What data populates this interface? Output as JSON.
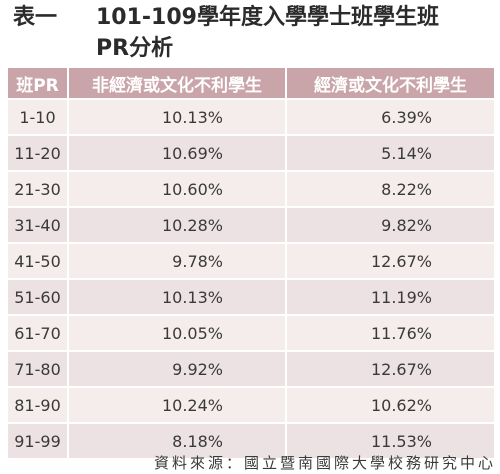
{
  "title": {
    "prefix": "表一",
    "line1": "101-109學年度入學學士班學生班",
    "line2": "PR分析"
  },
  "table": {
    "headers": [
      "班PR",
      "非經濟或文化不利學生",
      "經濟或文化不利學生"
    ],
    "rows": [
      {
        "range": "1-10",
        "non_disadvantaged": "10.13%",
        "disadvantaged": "6.39%"
      },
      {
        "range": "11-20",
        "non_disadvantaged": "10.69%",
        "disadvantaged": "5.14%"
      },
      {
        "range": "21-30",
        "non_disadvantaged": "10.60%",
        "disadvantaged": "8.22%"
      },
      {
        "range": "31-40",
        "non_disadvantaged": "10.28%",
        "disadvantaged": "9.82%"
      },
      {
        "range": "41-50",
        "non_disadvantaged": "9.78%",
        "disadvantaged": "12.67%"
      },
      {
        "range": "51-60",
        "non_disadvantaged": "10.13%",
        "disadvantaged": "11.19%"
      },
      {
        "range": "61-70",
        "non_disadvantaged": "10.05%",
        "disadvantaged": "11.76%"
      },
      {
        "range": "71-80",
        "non_disadvantaged": "9.92%",
        "disadvantaged": "12.67%"
      },
      {
        "range": "81-90",
        "non_disadvantaged": "10.24%",
        "disadvantaged": "10.62%"
      },
      {
        "range": "91-99",
        "non_disadvantaged": "8.18%",
        "disadvantaged": "11.53%"
      }
    ]
  },
  "source": "資料來源：國立暨南國際大學校務研究中心",
  "colors": {
    "header_bg": "#c9a4a9",
    "row_odd": "#f5ecec",
    "row_even": "#ece2e3"
  }
}
